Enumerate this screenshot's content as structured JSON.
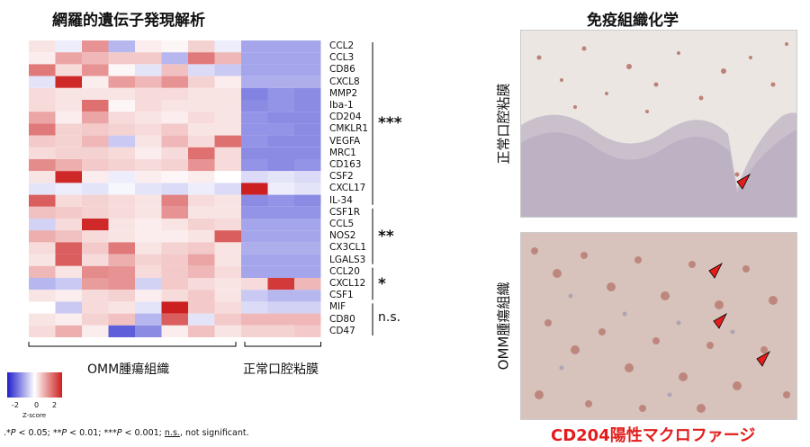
{
  "left_title": "網羅的遺伝子発現解析",
  "right_title": "免疫組織化学",
  "chart_data": {
    "type": "heatmap",
    "genes": [
      "CCL2",
      "CCL3",
      "CD86",
      "CXCL8",
      "MMP2",
      "Iba-1",
      "CD204",
      "CMKLR1",
      "VEGFA",
      "MRC1",
      "CD163",
      "CSF2",
      "CXCL17",
      "IL-34",
      "CSF1R",
      "CCL5",
      "NOS2",
      "CX3CL1",
      "LGALS3",
      "CCL20",
      "CXCL12",
      "CSF1",
      "MIF",
      "CD80",
      "CD47"
    ],
    "groups": [
      {
        "label": "OMM腫瘍組織",
        "columns": 8
      },
      {
        "label": "正常口腔粘膜",
        "columns": 3
      }
    ],
    "values": [
      [
        0.3,
        -0.2,
        1.2,
        -0.8,
        0.2,
        0.1,
        0.5,
        -0.2,
        -1,
        -1,
        -1
      ],
      [
        0.2,
        1,
        0.8,
        0.6,
        0.6,
        -0.8,
        1.5,
        0.8,
        -1,
        -1,
        -1
      ],
      [
        1.5,
        0.4,
        1.2,
        0.1,
        -0.3,
        0.7,
        -0.4,
        -0.6,
        -1,
        -1,
        -1
      ],
      [
        -0.3,
        2.4,
        0.2,
        1.1,
        0.8,
        1.2,
        0.5,
        0.2,
        -0.9,
        -0.9,
        -0.9
      ],
      [
        0.4,
        0.3,
        0.3,
        0.3,
        0.4,
        0.4,
        0.3,
        0.3,
        -1.4,
        -1.2,
        -1.3
      ],
      [
        0.4,
        0.3,
        1.6,
        0.1,
        0.4,
        0.3,
        0.3,
        0.3,
        -1.3,
        -1.2,
        -1.3
      ],
      [
        1,
        0.2,
        1,
        0.4,
        0.3,
        0.2,
        0.4,
        0.3,
        -1.2,
        -1.3,
        -1.3
      ],
      [
        1.5,
        0.5,
        0.6,
        0.5,
        0.4,
        0.6,
        0.3,
        0.3,
        -1.2,
        -1.2,
        -1.3
      ],
      [
        0.6,
        0.5,
        0.8,
        -0.6,
        0.3,
        0.8,
        0.4,
        1.6,
        -1.2,
        -1.3,
        -1.3
      ],
      [
        0.4,
        0.5,
        0.5,
        0.4,
        0.2,
        0.4,
        1.6,
        0.4,
        -1.3,
        -1.3,
        -1.3
      ],
      [
        1.3,
        0.9,
        0.6,
        0.5,
        0.4,
        0.5,
        1.2,
        0.4,
        -1.2,
        -1.3,
        -1.2
      ],
      [
        0.3,
        2.4,
        0.2,
        -0.2,
        0.2,
        0.1,
        0.2,
        0,
        -0.4,
        -0.3,
        -0.4
      ],
      [
        -0.3,
        -0.2,
        -0.3,
        -0.1,
        -0.3,
        -0.4,
        -0.2,
        -0.4,
        2.6,
        -0.2,
        -0.3
      ],
      [
        1.8,
        0.4,
        0.5,
        0.4,
        0.3,
        1.4,
        0.4,
        0.3,
        -1.3,
        -1.2,
        -1.3
      ],
      [
        0.7,
        0.6,
        0.5,
        0.4,
        0.3,
        1.2,
        0.3,
        0.3,
        -1.2,
        -1.2,
        -1.2
      ],
      [
        -0.5,
        0.4,
        2.4,
        0.3,
        0.2,
        0.3,
        0.5,
        0.4,
        -1,
        -1,
        -1
      ],
      [
        0.9,
        0.7,
        0.4,
        0.3,
        0.2,
        0.2,
        0.3,
        1.8,
        -1,
        -1,
        -1
      ],
      [
        0.4,
        1.8,
        0.6,
        1.5,
        0.3,
        0.5,
        0.6,
        0.3,
        -0.9,
        -0.9,
        -0.9
      ],
      [
        0.3,
        1.8,
        0.4,
        0.9,
        0.5,
        0.6,
        1,
        0.3,
        -1,
        -1,
        -1
      ],
      [
        0.8,
        0.3,
        1.3,
        1.2,
        0.4,
        0.6,
        0.8,
        0.4,
        -1,
        -1,
        -1
      ],
      [
        -0.8,
        -0.6,
        1.1,
        1.2,
        -0.5,
        0.6,
        0.4,
        0.3,
        0.4,
        2.2,
        0.8
      ],
      [
        0.3,
        0.2,
        0.4,
        0.5,
        0.2,
        0.4,
        0.6,
        0.3,
        -0.6,
        -0.8,
        -0.8
      ],
      [
        0,
        -0.6,
        0.4,
        0.3,
        -0.3,
        2.6,
        0.6,
        0.4,
        -0.4,
        -0.5,
        -0.5
      ],
      [
        0.3,
        0.2,
        0.5,
        0.7,
        -0.8,
        1.8,
        -0.3,
        0.6,
        0.8,
        0.8,
        0.8
      ],
      [
        0.4,
        0.9,
        0.2,
        -1.8,
        -1.3,
        0.2,
        0.7,
        0.3,
        0.5,
        0.5,
        0.6
      ]
    ],
    "significance": [
      {
        "label": "***",
        "from": 0,
        "to": 13
      },
      {
        "label": "**",
        "from": 14,
        "to": 18
      },
      {
        "label": "*",
        "from": 19,
        "to": 21
      },
      {
        "label": "n.s.",
        "from": 22,
        "to": 24
      }
    ],
    "colorscale": {
      "low": "#1f1fcc",
      "mid": "#ffffff",
      "high": "#cc1f1f",
      "range": [
        -2.5,
        2.5
      ]
    },
    "legend": {
      "title": "Z-score",
      "ticks": [
        "-2",
        "0",
        "2"
      ]
    }
  },
  "footnote": {
    "p1": ".*",
    "p2": "P",
    "p3": " < 0.05; **",
    "p4": "P",
    "p5": " < 0.01; ***",
    "p6": "P",
    "p7": " < 0.001; ",
    "p8": "n.s.",
    "p9": ", not significant."
  },
  "ihc": {
    "top_label": "正常口腔粘膜",
    "bottom_label": "OMM腫瘍組織",
    "caption": "CD204陽性マクロファージ",
    "arrow_color": "#e31d1d"
  }
}
